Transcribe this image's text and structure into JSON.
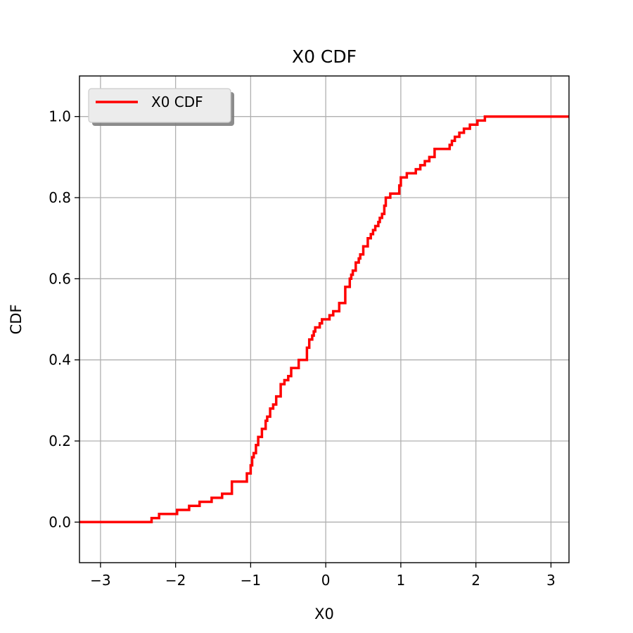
{
  "chart_data": {
    "type": "line",
    "title": "X0 CDF",
    "xlabel": "X0",
    "ylabel": "CDF",
    "xlim": [
      -3.28,
      3.24
    ],
    "ylim": [
      -0.1,
      1.1
    ],
    "xticks": [
      -3,
      -2,
      -1,
      0,
      1,
      2,
      3
    ],
    "xtick_labels": [
      "−3",
      "−2",
      "−1",
      "0",
      "1",
      "2",
      "3"
    ],
    "yticks": [
      0.0,
      0.2,
      0.4,
      0.6,
      0.8,
      1.0
    ],
    "ytick_labels": [
      "0.0",
      "0.2",
      "0.4",
      "0.6",
      "0.8",
      "1.0"
    ],
    "grid": true,
    "legend_position": "top-left",
    "colors": {
      "series": "#ff0000",
      "grid": "#b0b0b0"
    },
    "series": [
      {
        "name": "X0 CDF",
        "step": "post",
        "x": [
          -3.28,
          -2.32,
          -2.22,
          -2.12,
          -1.98,
          -1.82,
          -1.68,
          -1.52,
          -1.38,
          -1.25,
          -1.05,
          -1.0,
          -0.98,
          -0.96,
          -0.93,
          -0.9,
          -0.85,
          -0.8,
          -0.78,
          -0.74,
          -0.7,
          -0.66,
          -0.6,
          -0.55,
          -0.5,
          -0.46,
          -0.42,
          -0.36,
          -0.25,
          -0.22,
          -0.18,
          -0.16,
          -0.14,
          -0.12,
          -0.08,
          -0.05,
          0.05,
          0.1,
          0.18,
          0.26,
          0.32,
          0.34,
          0.36,
          0.4,
          0.44,
          0.46,
          0.5,
          0.56,
          0.6,
          0.63,
          0.66,
          0.7,
          0.72,
          0.75,
          0.78,
          0.8,
          0.86,
          0.98,
          1.0,
          1.08,
          1.2,
          1.26,
          1.32,
          1.38,
          1.45,
          1.65,
          1.68,
          1.72,
          1.78,
          1.84,
          1.92,
          2.02,
          2.12,
          2.22,
          2.26
        ],
        "y": [
          0.0,
          0.01,
          0.02,
          0.02,
          0.03,
          0.04,
          0.05,
          0.06,
          0.07,
          0.1,
          0.12,
          0.14,
          0.16,
          0.17,
          0.19,
          0.21,
          0.23,
          0.25,
          0.26,
          0.28,
          0.29,
          0.31,
          0.34,
          0.35,
          0.36,
          0.38,
          0.38,
          0.4,
          0.43,
          0.45,
          0.46,
          0.47,
          0.48,
          0.48,
          0.49,
          0.5,
          0.51,
          0.52,
          0.54,
          0.58,
          0.6,
          0.61,
          0.62,
          0.64,
          0.65,
          0.66,
          0.68,
          0.7,
          0.71,
          0.72,
          0.73,
          0.74,
          0.75,
          0.76,
          0.78,
          0.8,
          0.81,
          0.83,
          0.85,
          0.86,
          0.87,
          0.88,
          0.89,
          0.9,
          0.92,
          0.93,
          0.94,
          0.95,
          0.96,
          0.97,
          0.98,
          0.99,
          1.0,
          1.0,
          1.0
        ]
      }
    ]
  }
}
